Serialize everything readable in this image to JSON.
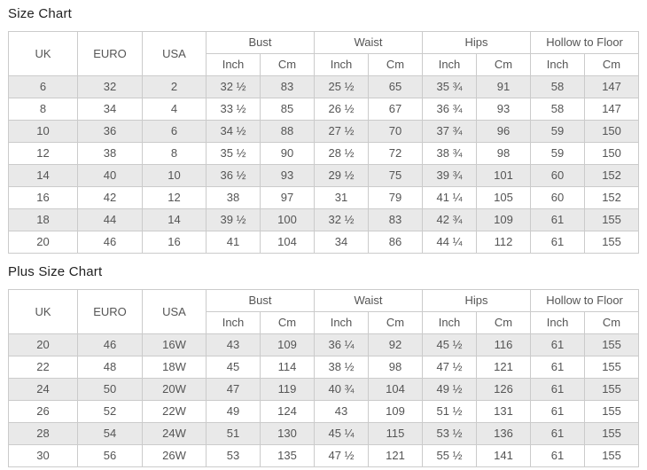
{
  "colors": {
    "page_bg": "#ffffff",
    "title_text": "#222222",
    "cell_text": "#555555",
    "border": "#cbcbcb",
    "stripe_row_bg": "#e9e9e9",
    "plain_row_bg": "#ffffff",
    "header_bg": "#ffffff"
  },
  "tables": [
    {
      "title": "Size Chart",
      "size_columns": [
        "UK",
        "EURO",
        "USA"
      ],
      "measure_groups": [
        "Bust",
        "Waist",
        "Hips",
        "Hollow to Floor"
      ],
      "unit_headers": [
        "Inch",
        "Cm"
      ],
      "rows": [
        [
          "6",
          "32",
          "2",
          "32 ½",
          "83",
          "25 ½",
          "65",
          "35 ¾",
          "91",
          "58",
          "147"
        ],
        [
          "8",
          "34",
          "4",
          "33 ½",
          "85",
          "26 ½",
          "67",
          "36 ¾",
          "93",
          "58",
          "147"
        ],
        [
          "10",
          "36",
          "6",
          "34 ½",
          "88",
          "27 ½",
          "70",
          "37 ¾",
          "96",
          "59",
          "150"
        ],
        [
          "12",
          "38",
          "8",
          "35 ½",
          "90",
          "28 ½",
          "72",
          "38 ¾",
          "98",
          "59",
          "150"
        ],
        [
          "14",
          "40",
          "10",
          "36 ½",
          "93",
          "29 ½",
          "75",
          "39 ¾",
          "101",
          "60",
          "152"
        ],
        [
          "16",
          "42",
          "12",
          "38",
          "97",
          "31",
          "79",
          "41 ¼",
          "105",
          "60",
          "152"
        ],
        [
          "18",
          "44",
          "14",
          "39 ½",
          "100",
          "32 ½",
          "83",
          "42 ¾",
          "109",
          "61",
          "155"
        ],
        [
          "20",
          "46",
          "16",
          "41",
          "104",
          "34",
          "86",
          "44 ¼",
          "112",
          "61",
          "155"
        ]
      ]
    },
    {
      "title": "Plus Size Chart",
      "size_columns": [
        "UK",
        "EURO",
        "USA"
      ],
      "measure_groups": [
        "Bust",
        "Waist",
        "Hips",
        "Hollow to Floor"
      ],
      "unit_headers": [
        "Inch",
        "Cm"
      ],
      "rows": [
        [
          "20",
          "46",
          "16W",
          "43",
          "109",
          "36 ¼",
          "92",
          "45 ½",
          "116",
          "61",
          "155"
        ],
        [
          "22",
          "48",
          "18W",
          "45",
          "114",
          "38 ½",
          "98",
          "47 ½",
          "121",
          "61",
          "155"
        ],
        [
          "24",
          "50",
          "20W",
          "47",
          "119",
          "40 ¾",
          "104",
          "49 ½",
          "126",
          "61",
          "155"
        ],
        [
          "26",
          "52",
          "22W",
          "49",
          "124",
          "43",
          "109",
          "51 ½",
          "131",
          "61",
          "155"
        ],
        [
          "28",
          "54",
          "24W",
          "51",
          "130",
          "45 ¼",
          "115",
          "53 ½",
          "136",
          "61",
          "155"
        ],
        [
          "30",
          "56",
          "26W",
          "53",
          "135",
          "47 ½",
          "121",
          "55 ½",
          "141",
          "61",
          "155"
        ]
      ]
    }
  ]
}
